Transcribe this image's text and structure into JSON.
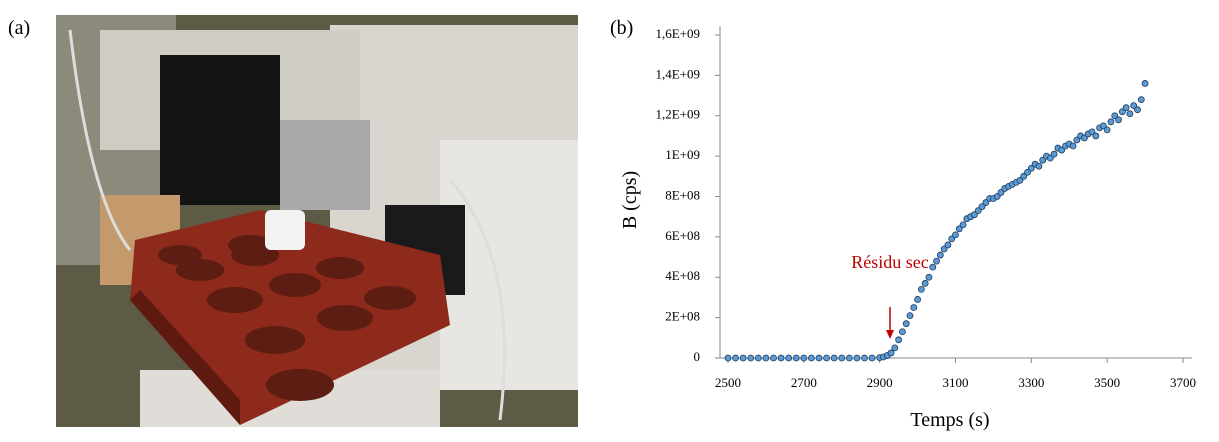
{
  "panel_a": {
    "label": "(a)"
  },
  "chart_data": {
    "type": "scatter",
    "panel_label": "(b)",
    "x_label": "Temps (s)",
    "y_label": "B (cps)",
    "annotation": "Résidu sec",
    "color": "#5b9bd5",
    "edge_color": "#1f3a5a",
    "annotation_color": "#c00000",
    "xlim": [
      2500,
      3700
    ],
    "xticks": [
      2500,
      2700,
      2900,
      3100,
      3300,
      3500,
      3700
    ],
    "ylim": [
      0,
      1600000000
    ],
    "yticks": [
      0,
      {
        "value": 200000000,
        "label": "2E+08"
      },
      {
        "value": 400000000,
        "label": "4E+08"
      },
      {
        "value": 600000000,
        "label": "6E+08"
      },
      {
        "value": 800000000,
        "label": "8E+08"
      },
      {
        "value": 1000000000,
        "label": "1E+09"
      },
      {
        "value": 1200000000,
        "label": "1,2E+09"
      },
      {
        "value": 1400000000,
        "label": "1,4E+09"
      },
      {
        "value": 1600000000,
        "label": "1,6E+09"
      }
    ],
    "x": [
      2500,
      2520,
      2540,
      2560,
      2580,
      2600,
      2620,
      2640,
      2660,
      2680,
      2700,
      2720,
      2740,
      2760,
      2780,
      2800,
      2820,
      2840,
      2860,
      2880,
      2900,
      2910,
      2920,
      2930,
      2940,
      2950,
      2960,
      2970,
      2980,
      2990,
      3000,
      3010,
      3020,
      3030,
      3040,
      3050,
      3060,
      3070,
      3080,
      3090,
      3100,
      3110,
      3120,
      3130,
      3140,
      3150,
      3160,
      3170,
      3180,
      3190,
      3200,
      3210,
      3220,
      3230,
      3240,
      3250,
      3260,
      3270,
      3280,
      3290,
      3300,
      3310,
      3320,
      3330,
      3340,
      3350,
      3360,
      3370,
      3380,
      3390,
      3400,
      3410,
      3420,
      3430,
      3440,
      3450,
      3460,
      3470,
      3480,
      3490,
      3500,
      3510,
      3520,
      3530,
      3540,
      3550,
      3560,
      3570,
      3580,
      3590,
      3600
    ],
    "values": [
      0,
      0,
      0,
      0,
      0,
      0,
      0,
      0,
      0,
      0,
      0,
      0,
      0,
      0,
      0,
      0,
      0,
      0,
      0,
      0,
      2000000,
      5000000,
      12000000,
      25000000,
      50000000,
      90000000,
      130000000,
      170000000,
      210000000,
      250000000,
      290000000,
      340000000,
      370000000,
      400000000,
      450000000,
      480000000,
      510000000,
      540000000,
      560000000,
      590000000,
      610000000,
      640000000,
      660000000,
      690000000,
      700000000,
      710000000,
      730000000,
      750000000,
      770000000,
      790000000,
      790000000,
      800000000,
      820000000,
      840000000,
      850000000,
      860000000,
      870000000,
      880000000,
      900000000,
      920000000,
      940000000,
      960000000,
      950000000,
      980000000,
      1000000000,
      990000000,
      1010000000,
      1040000000,
      1030000000,
      1050000000,
      1060000000,
      1050000000,
      1080000000,
      1100000000,
      1090000000,
      1110000000,
      1120000000,
      1100000000,
      1140000000,
      1150000000,
      1130000000,
      1170000000,
      1200000000,
      1180000000,
      1220000000,
      1240000000,
      1210000000,
      1250000000,
      1230000000,
      1280000000,
      1360000000
    ]
  }
}
